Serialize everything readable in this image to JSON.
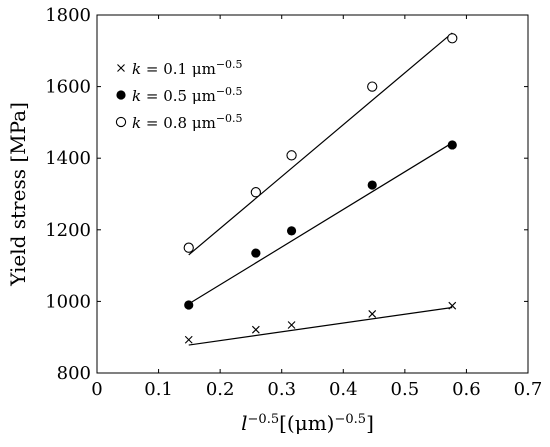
{
  "chart_data": {
    "type": "scatter",
    "title": "",
    "xlabel": {
      "base": "l",
      "base_sup": "−0.5",
      "bracket": "[(μm)",
      "bracket_sup": "−0.5",
      "close": "]"
    },
    "ylabel": "Yield stress [MPa]",
    "xlim": [
      0,
      0.7
    ],
    "ylim": [
      800,
      1800
    ],
    "xticks": [
      0,
      0.1,
      0.2,
      0.3,
      0.4,
      0.5,
      0.6,
      0.7
    ],
    "yticks": [
      800,
      1000,
      1200,
      1400,
      1600,
      1800
    ],
    "xtick_labels": [
      "0",
      "0.1",
      "0.2",
      "0.3",
      "0.4",
      "0.5",
      "0.6",
      "0.7"
    ],
    "ytick_labels": [
      "800",
      "1000",
      "1200",
      "1400",
      "1600",
      "1800"
    ],
    "grid": false,
    "legend_position": "top-left",
    "series": [
      {
        "name": "k = 0.1 μm^−0.5",
        "legend": {
          "var": "k",
          "eq": " = 0.1 ",
          "unit": "μm",
          "sup": "−0.5"
        },
        "marker": "cross",
        "x": [
          0.149,
          0.258,
          0.316,
          0.447,
          0.577
        ],
        "y": [
          893,
          921,
          934,
          965,
          988
        ],
        "fit": [
          [
            0.149,
            878
          ],
          [
            0.577,
            983
          ]
        ]
      },
      {
        "name": "k = 0.5 μm^−0.5",
        "legend": {
          "var": "k",
          "eq": " = 0.5 ",
          "unit": "μm",
          "sup": "−0.5"
        },
        "marker": "filled-circle",
        "x": [
          0.149,
          0.258,
          0.316,
          0.447,
          0.577
        ],
        "y": [
          990,
          1135,
          1197,
          1325,
          1437
        ],
        "fit": [
          [
            0.149,
            993
          ],
          [
            0.577,
            1443
          ]
        ]
      },
      {
        "name": "k = 0.8 μm^−0.5",
        "legend": {
          "var": "k",
          "eq": " = 0.8 ",
          "unit": "μm",
          "sup": "−0.5"
        },
        "marker": "open-circle",
        "x": [
          0.149,
          0.258,
          0.316,
          0.447,
          0.577
        ],
        "y": [
          1150,
          1305,
          1408,
          1600,
          1735
        ],
        "fit": [
          [
            0.149,
            1130
          ],
          [
            0.577,
            1750
          ]
        ]
      }
    ]
  }
}
